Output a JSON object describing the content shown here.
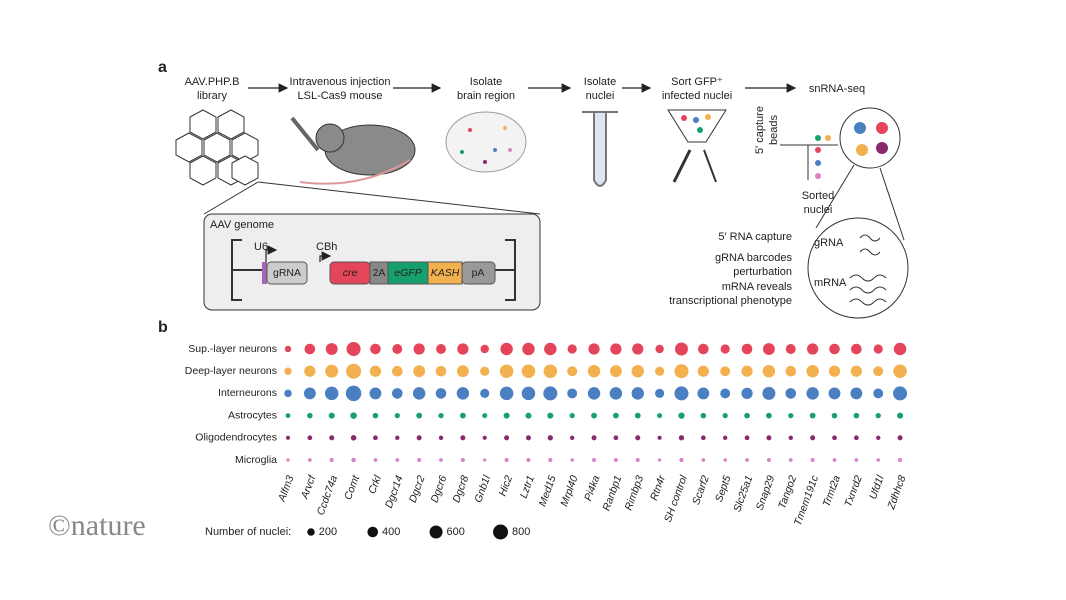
{
  "panel_a": {
    "label": "a",
    "steps": [
      [
        "AAV.PHP.B",
        "library"
      ],
      [
        "Intravenous injection",
        "LSL-Cas9 mouse"
      ],
      [
        "Isolate",
        "brain region"
      ],
      [
        "Isolate",
        "nuclei"
      ],
      [
        "Sort GFP⁺",
        "infected nuclei"
      ],
      [
        "snRNA-seq"
      ]
    ],
    "beads": [
      "5′ capture",
      "beads"
    ],
    "sorted": [
      "Sorted",
      "nuclei"
    ],
    "genome": {
      "title": "AAV genome",
      "promoters": [
        "U6",
        "CBh"
      ],
      "segments": [
        "gRNA",
        "cre",
        "2A",
        "eGFP",
        "KASH",
        "pA"
      ]
    },
    "capture": [
      "5′ RNA capture",
      "gRNA barcodes",
      "perturbation",
      "mRNA reveals",
      "transcriptional phenotype"
    ],
    "inset": [
      "gRNA",
      "mRNA"
    ]
  },
  "chart_data": {
    "type": "dot",
    "label": "b",
    "categories": [
      "Alfm3",
      "Arvcf",
      "Ccdc74a",
      "Comt",
      "Crkl",
      "Dgcr14",
      "Dgcr2",
      "Dgcr6",
      "Dgcr8",
      "Gnb1l",
      "Hic2",
      "Lztr1",
      "Med15",
      "Mrpl40",
      "Pi4ka",
      "Ranbp1",
      "Rimbp3",
      "Rtn4r",
      "SH control",
      "Scarf2",
      "Sept5",
      "Slc25a1",
      "Snap29",
      "Tango2",
      "Tmem191c",
      "Trmt2a",
      "Txnrd2",
      "Ufd1l",
      "Zdhhc8"
    ],
    "series": [
      {
        "name": "Sup.-layer neurons",
        "color": "#e5455a",
        "values": [
          150,
          400,
          500,
          700,
          400,
          350,
          450,
          350,
          450,
          250,
          550,
          550,
          550,
          300,
          450,
          450,
          450,
          250,
          600,
          400,
          300,
          400,
          500,
          350,
          450,
          400,
          400,
          300,
          550
        ]
      },
      {
        "name": "Deep-layer neurons",
        "color": "#f3b04e",
        "values": [
          200,
          450,
          600,
          800,
          450,
          400,
          500,
          400,
          500,
          300,
          650,
          650,
          650,
          350,
          550,
          500,
          550,
          300,
          700,
          450,
          350,
          450,
          550,
          400,
          550,
          450,
          450,
          350,
          650
        ]
      },
      {
        "name": "Interneurons",
        "color": "#4a7fc1",
        "values": [
          200,
          500,
          650,
          850,
          500,
          400,
          550,
          400,
          550,
          300,
          650,
          650,
          700,
          350,
          550,
          550,
          550,
          300,
          700,
          500,
          350,
          450,
          600,
          400,
          550,
          500,
          500,
          350,
          700
        ]
      },
      {
        "name": "Astrocytes",
        "color": "#17a06e",
        "values": [
          80,
          110,
          130,
          150,
          110,
          100,
          120,
          100,
          120,
          90,
          130,
          130,
          130,
          100,
          120,
          120,
          120,
          90,
          140,
          110,
          100,
          110,
          120,
          100,
          120,
          110,
          110,
          100,
          130
        ]
      },
      {
        "name": "Oligodendrocytes",
        "color": "#8a2a6e",
        "values": [
          60,
          80,
          90,
          110,
          80,
          70,
          90,
          70,
          90,
          60,
          90,
          90,
          100,
          70,
          90,
          80,
          90,
          60,
          100,
          80,
          70,
          80,
          90,
          70,
          90,
          80,
          80,
          70,
          90
        ]
      },
      {
        "name": "Microglia",
        "color": "#d684c2",
        "values": [
          40,
          50,
          60,
          70,
          50,
          50,
          55,
          50,
          55,
          40,
          60,
          60,
          60,
          45,
          55,
          55,
          55,
          40,
          65,
          50,
          45,
          50,
          55,
          50,
          55,
          50,
          50,
          45,
          60
        ]
      }
    ],
    "size_title": "Number of nuclei:",
    "size_legend": [
      200,
      400,
      600,
      800
    ]
  },
  "credit": "©nature"
}
